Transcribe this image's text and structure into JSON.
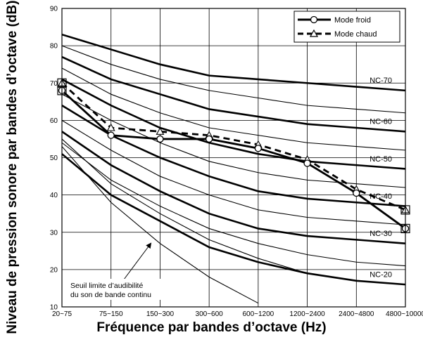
{
  "chart_data": {
    "type": "line",
    "ylabel": "Niveau de pression sonore par bandes d’octave (dB)",
    "xlabel": "Fréquence par bandes d’octave (Hz)",
    "ylim": [
      10,
      90
    ],
    "yticks": [
      10,
      20,
      30,
      40,
      50,
      60,
      70,
      80,
      90
    ],
    "categories": [
      "20~75",
      "75~150",
      "150~300",
      "300~600",
      "600~1200",
      "1200~2400",
      "2400~4800",
      "4800~10000"
    ],
    "grid": true,
    "legend_position": "top-right",
    "nc_curves": [
      {
        "name": "NC-20",
        "label": "NC-20",
        "heavy": true,
        "values": [
          51,
          40,
          33,
          26,
          22,
          19,
          17,
          16
        ]
      },
      {
        "name": "NC-25",
        "heavy": false,
        "values": [
          54,
          44,
          37,
          31,
          27,
          24,
          22,
          21
        ]
      },
      {
        "name": "NC-30",
        "label": "NC-30",
        "heavy": true,
        "values": [
          57,
          48,
          41,
          35,
          31,
          29,
          28,
          27
        ]
      },
      {
        "name": "NC-35",
        "heavy": false,
        "values": [
          60,
          52,
          45,
          40,
          36,
          34,
          33,
          32
        ]
      },
      {
        "name": "NC-40",
        "label": "NC-40",
        "heavy": true,
        "values": [
          64,
          56,
          50,
          45,
          41,
          39,
          38,
          37
        ]
      },
      {
        "name": "NC-45",
        "heavy": false,
        "values": [
          67,
          60,
          54,
          49,
          46,
          44,
          43,
          42
        ]
      },
      {
        "name": "NC-50",
        "label": "NC-50",
        "heavy": true,
        "values": [
          71,
          64,
          58,
          54,
          51,
          49,
          48,
          47
        ]
      },
      {
        "name": "NC-55",
        "heavy": false,
        "values": [
          74,
          67,
          62,
          58,
          56,
          54,
          53,
          52
        ]
      },
      {
        "name": "NC-60",
        "label": "NC-60",
        "heavy": true,
        "values": [
          77,
          71,
          67,
          63,
          61,
          59,
          58,
          57
        ]
      },
      {
        "name": "NC-65",
        "heavy": false,
        "values": [
          80,
          75,
          71,
          68,
          66,
          64,
          63,
          62
        ]
      },
      {
        "name": "NC-70",
        "label": "NC-70",
        "heavy": true,
        "values": [
          83,
          79,
          75,
          72,
          71,
          70,
          69,
          68
        ]
      }
    ],
    "low_curves": [
      {
        "name": "threshold-1",
        "values": [
          53,
          38,
          27,
          18,
          11,
          null,
          null,
          null
        ]
      },
      {
        "name": "threshold-2",
        "values": [
          55,
          43,
          35,
          28,
          23,
          19,
          null,
          null
        ]
      }
    ],
    "series": [
      {
        "name": "Mode froid",
        "marker": "circle",
        "values": [
          68,
          56,
          55,
          55,
          52.5,
          48.5,
          40.5,
          31
        ]
      },
      {
        "name": "Mode chaud",
        "marker": "triangle",
        "values": [
          70,
          58,
          57,
          56,
          53.5,
          49.5,
          41.5,
          36
        ]
      }
    ],
    "annotation": {
      "line1": "Seuil limite d’audibilité",
      "line2": "du son de bande continu"
    }
  }
}
